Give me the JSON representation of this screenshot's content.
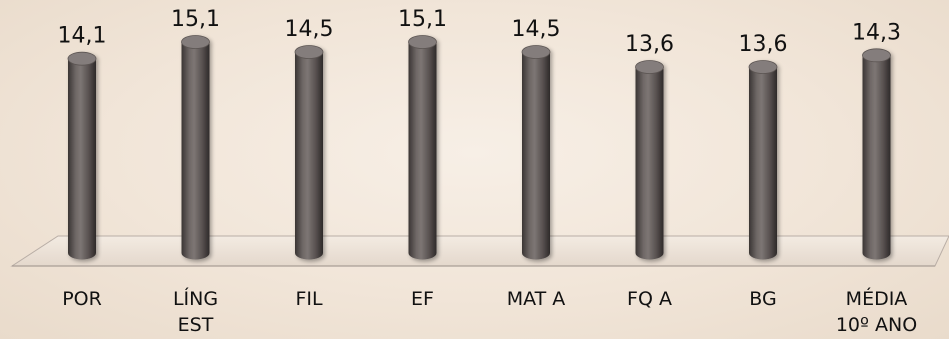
{
  "chart_data": {
    "type": "bar",
    "style": "3d-cylinder",
    "categories": [
      [
        "POR"
      ],
      [
        "LÍNG",
        "EST"
      ],
      [
        "FIL"
      ],
      [
        "EF"
      ],
      [
        "MAT A"
      ],
      [
        "FQ A"
      ],
      [
        "BG"
      ],
      [
        "MÉDIA",
        "10º ANO"
      ]
    ],
    "values": [
      14.1,
      15.1,
      14.5,
      15.1,
      14.5,
      13.6,
      13.6,
      14.3
    ],
    "value_labels": [
      "14,1",
      "15,1",
      "14,5",
      "15,1",
      "14,5",
      "13,6",
      "13,6",
      "14,3"
    ],
    "title": "",
    "xlabel": "",
    "ylabel": "",
    "grid": false,
    "legend": "none",
    "colors": {
      "bar": "#6b6462",
      "bar_dark": "#3f3a39",
      "bar_top": "#847d7b",
      "floor": "#ece2d8",
      "floor_edge": "#b9aea6",
      "text": "#111111"
    }
  }
}
